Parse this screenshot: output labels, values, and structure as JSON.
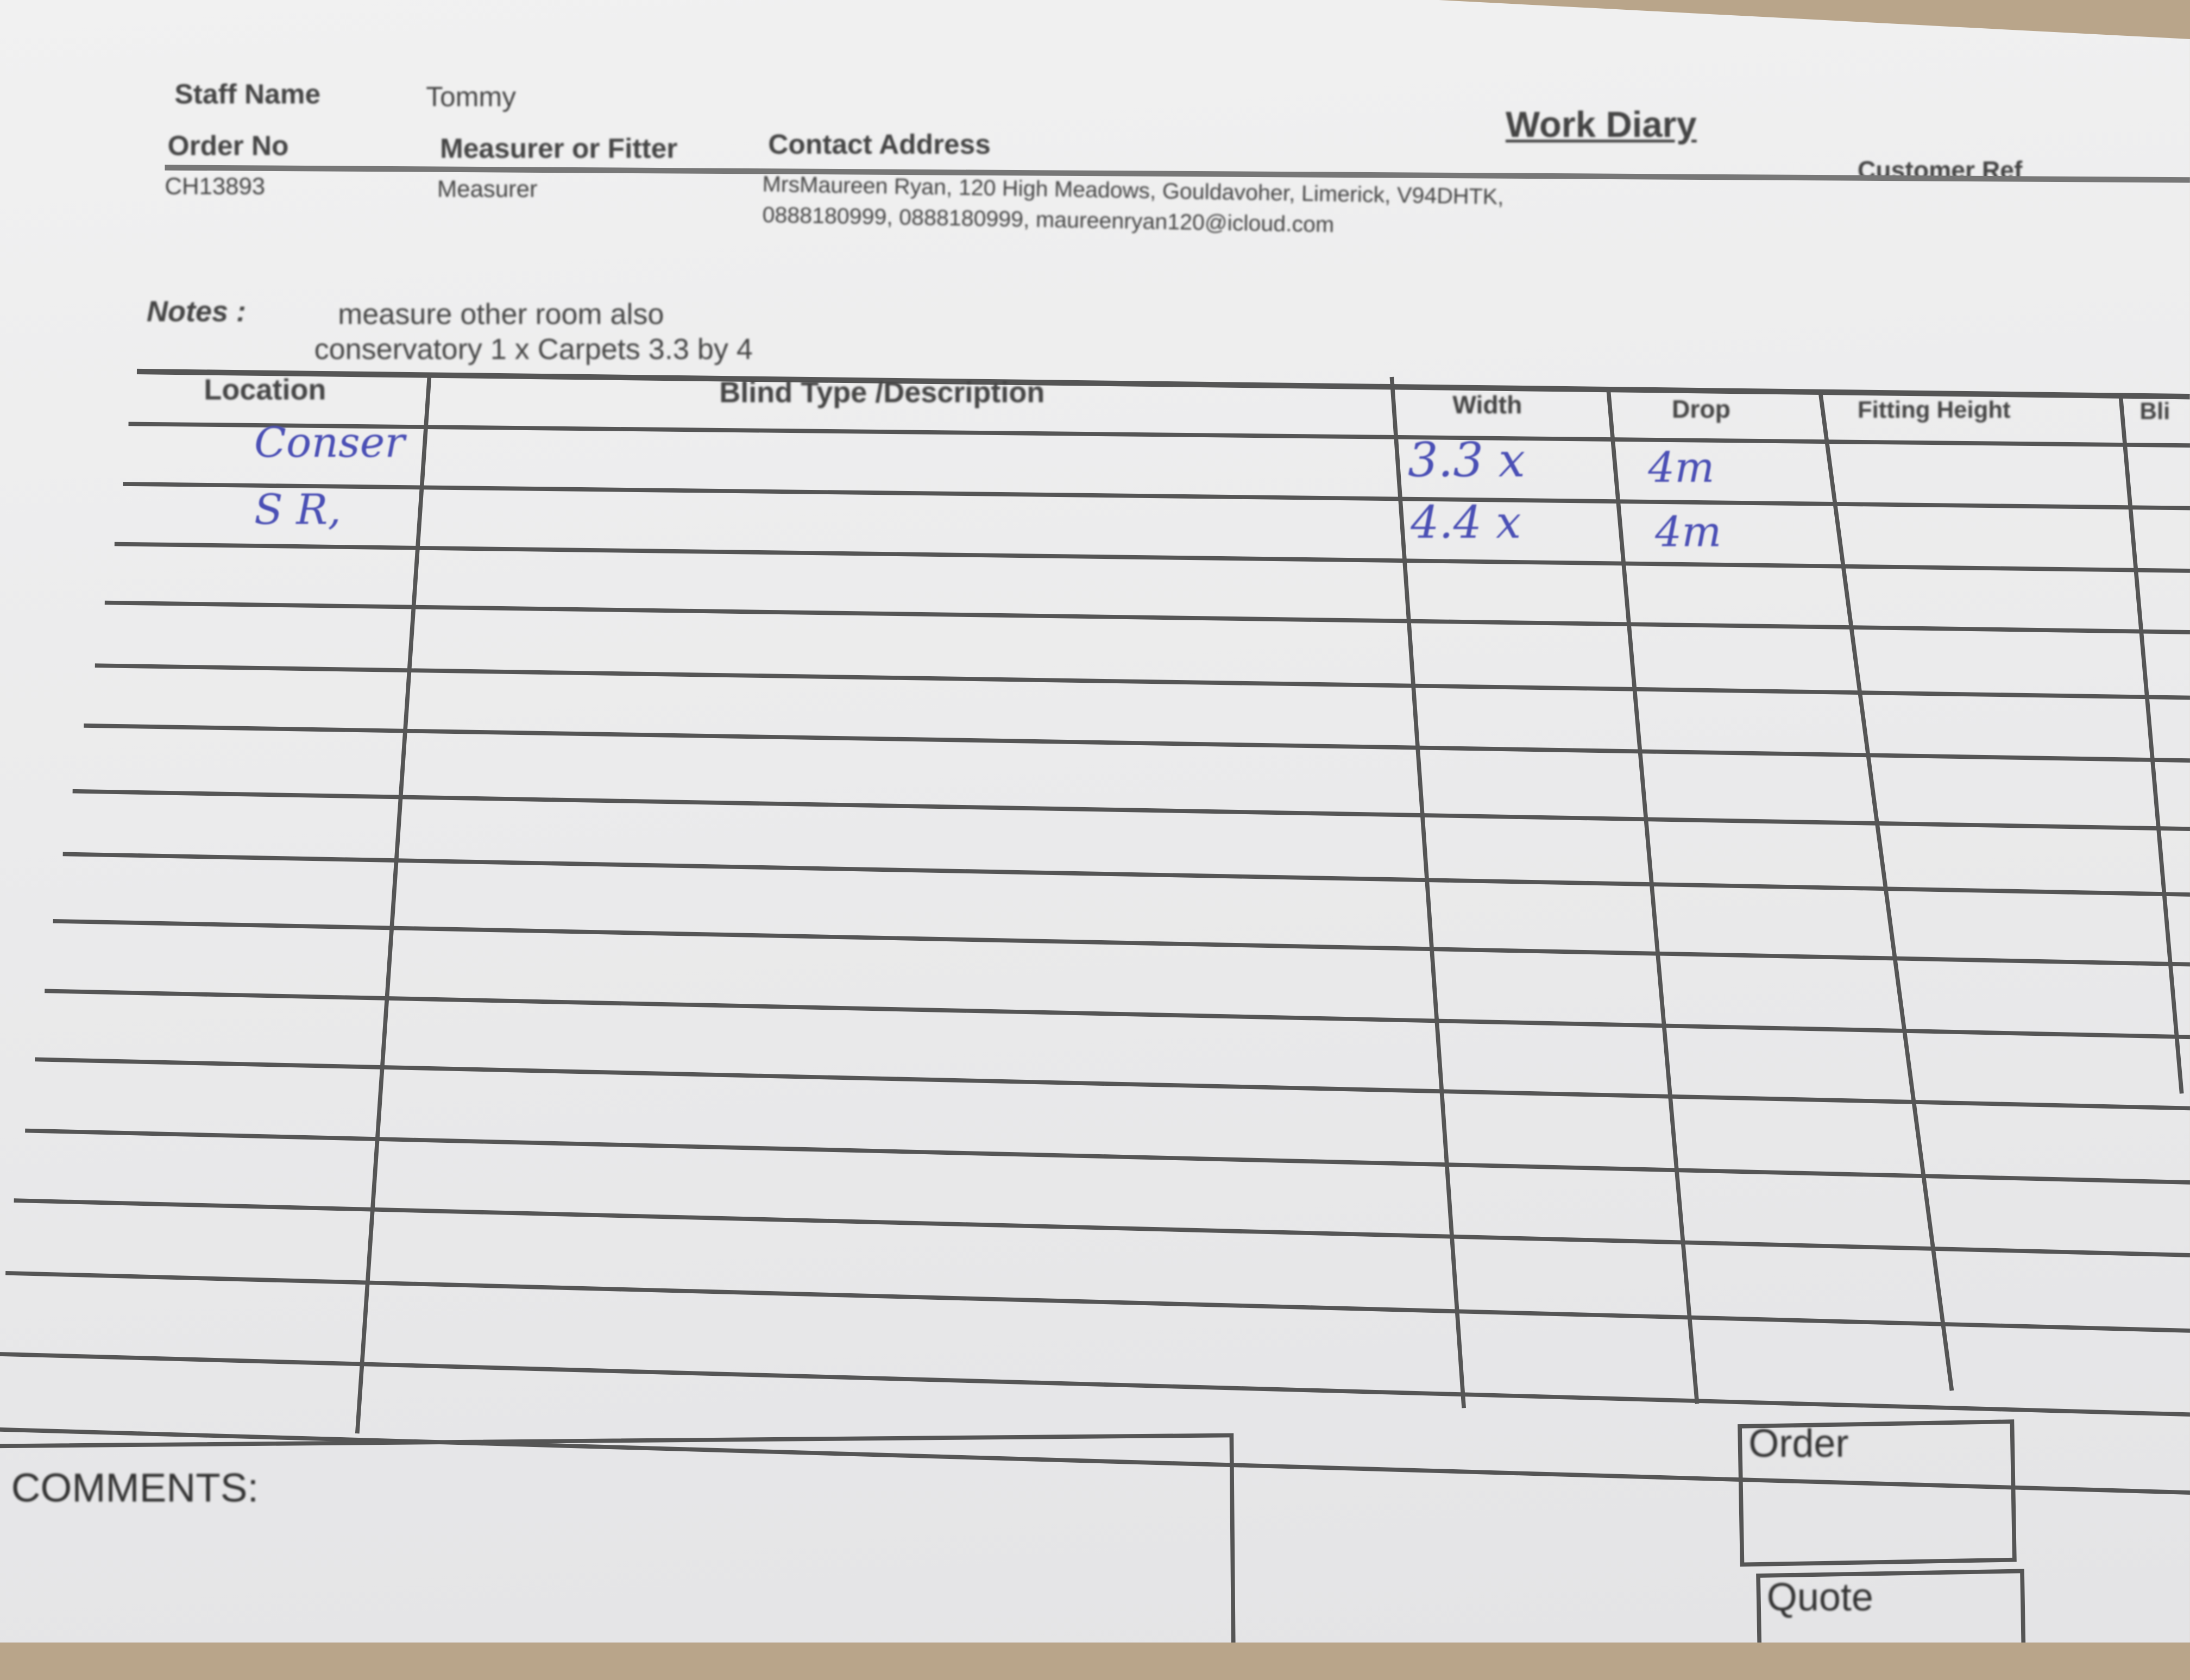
{
  "header": {
    "staff_name_label": "Staff Name",
    "staff_name": "Tommy",
    "order_no_label": "Order No",
    "order_no": "CH13893",
    "measurer_label": "Measurer or Fitter",
    "measurer": "Measurer",
    "contact_label": "Contact Address",
    "contact_line1": "MrsMaureen Ryan, 120 High Meadows, Gouldavoher, Limerick, V94DHTK,",
    "contact_line2": "0888180999, 0888180999, maureenryan120@icloud.com",
    "title": "Work Diary",
    "customer_ref_label": "Customer Ref"
  },
  "notes": {
    "label": "Notes :",
    "line1": "measure other room also",
    "line2": "conservatory 1 x Carpets 3.3 by 4"
  },
  "table": {
    "columns": [
      "Location",
      "Blind Type /Description",
      "Width",
      "Drop",
      "Fitting Height",
      "Bli"
    ],
    "rows": [
      {
        "location": "Conser",
        "width": "3.3 x",
        "drop": "4m"
      },
      {
        "location": "S R,",
        "width": "4.4 x",
        "drop": "4m"
      }
    ]
  },
  "footer": {
    "comments_label": "COMMENTS:",
    "order_label": "Order",
    "quote_label": "Quote"
  },
  "colors": {
    "ink": "#4a4fb5",
    "print": "#444444",
    "paper": "#ececec"
  }
}
